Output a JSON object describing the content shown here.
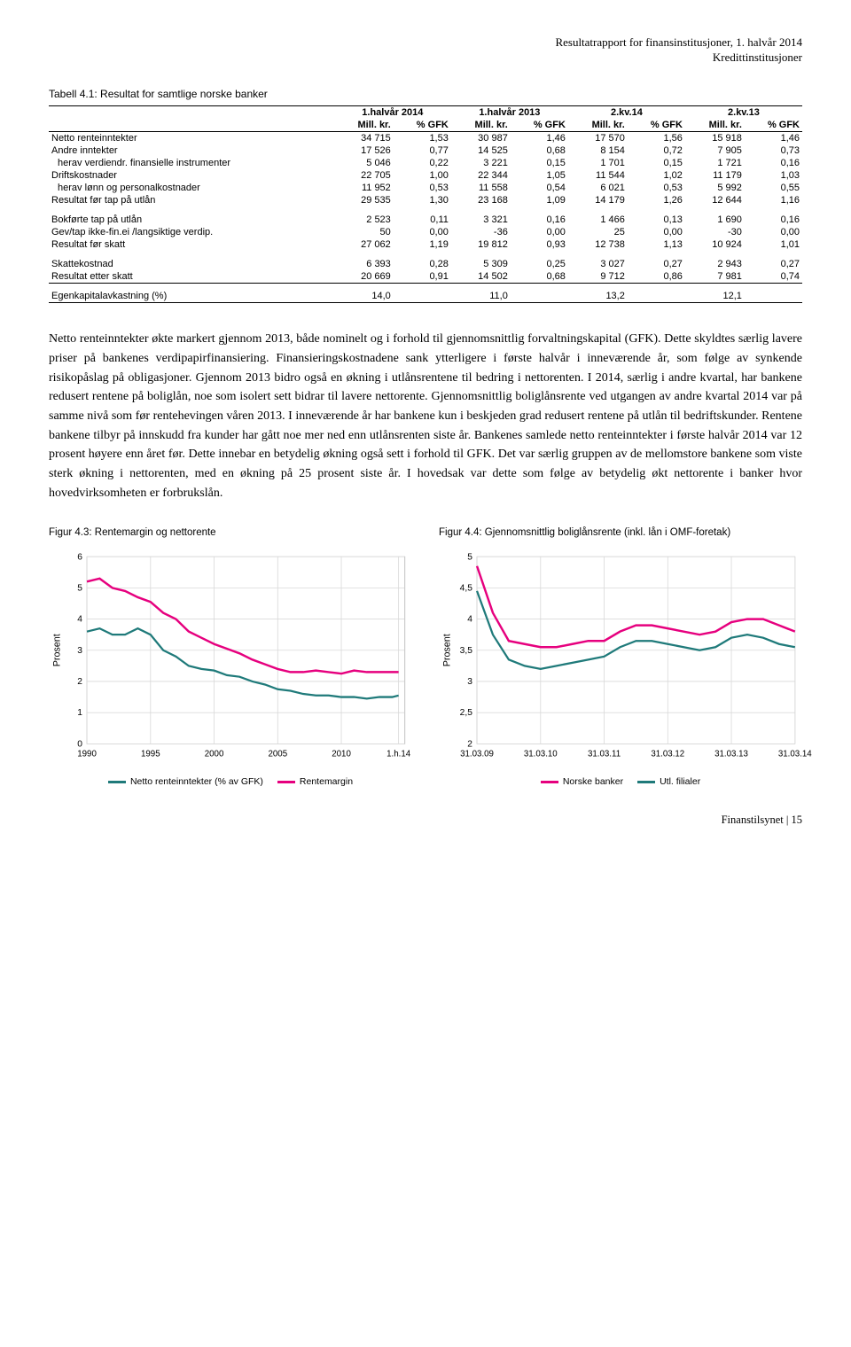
{
  "header": {
    "line1": "Resultatrapport for finansinstitusjoner, 1. halvår 2014",
    "line2": "Kredittinstitusjoner"
  },
  "table": {
    "caption": "Tabell 4.1: Resultat for samtlige norske banker",
    "col_groups": [
      "1.halvår 2014",
      "1.halvår 2013",
      "2.kv.14",
      "2.kv.13"
    ],
    "col_sub": [
      "Mill. kr.",
      "% GFK"
    ],
    "rows": [
      {
        "label": "Netto renteinntekter",
        "vals": [
          "34 715",
          "1,53",
          "30 987",
          "1,46",
          "17 570",
          "1,56",
          "15 918",
          "1,46"
        ]
      },
      {
        "label": "Andre inntekter",
        "vals": [
          "17 526",
          "0,77",
          "14 525",
          "0,68",
          "8 154",
          "0,72",
          "7 905",
          "0,73"
        ]
      },
      {
        "label": "herav verdiendr. finansielle instrumenter",
        "indent": true,
        "vals": [
          "5 046",
          "0,22",
          "3 221",
          "0,15",
          "1 701",
          "0,15",
          "1 721",
          "0,16"
        ]
      },
      {
        "label": "Driftskostnader",
        "vals": [
          "22 705",
          "1,00",
          "22 344",
          "1,05",
          "11 544",
          "1,02",
          "11 179",
          "1,03"
        ]
      },
      {
        "label": "herav lønn og personalkostnader",
        "indent": true,
        "vals": [
          "11 952",
          "0,53",
          "11 558",
          "0,54",
          "6 021",
          "0,53",
          "5 992",
          "0,55"
        ]
      },
      {
        "label": "Resultat før tap på utlån",
        "vals": [
          "29 535",
          "1,30",
          "23 168",
          "1,09",
          "14 179",
          "1,26",
          "12 644",
          "1,16"
        ]
      }
    ],
    "rows2": [
      {
        "label": "Bokførte tap på utlån",
        "vals": [
          "2 523",
          "0,11",
          "3 321",
          "0,16",
          "1 466",
          "0,13",
          "1 690",
          "0,16"
        ]
      },
      {
        "label": "Gev/tap ikke-fin.ei /langsiktige verdip.",
        "vals": [
          "50",
          "0,00",
          "-36",
          "0,00",
          "25",
          "0,00",
          "-30",
          "0,00"
        ]
      },
      {
        "label": "Resultat før skatt",
        "vals": [
          "27 062",
          "1,19",
          "19 812",
          "0,93",
          "12 738",
          "1,13",
          "10 924",
          "1,01"
        ]
      }
    ],
    "rows3": [
      {
        "label": "Skattekostnad",
        "vals": [
          "6 393",
          "0,28",
          "5 309",
          "0,25",
          "3 027",
          "0,27",
          "2 943",
          "0,27"
        ]
      },
      {
        "label": "Resultat etter skatt",
        "vals": [
          "20 669",
          "0,91",
          "14 502",
          "0,68",
          "9 712",
          "0,86",
          "7 981",
          "0,74"
        ]
      }
    ],
    "rows4": [
      {
        "label": "Egenkapitalavkastning (%)",
        "vals": [
          "14,0",
          "",
          "11,0",
          "",
          "13,2",
          "",
          "12,1",
          ""
        ]
      }
    ]
  },
  "body": "Netto renteinntekter økte markert gjennom 2013, både nominelt og i forhold til gjennomsnittlig forvaltningskapital (GFK). Dette skyldtes særlig lavere priser på bankenes verdipapirfinansiering. Finansieringskostnadene sank ytterligere i første halvår i inneværende år, som følge av synkende risikopåslag på obligasjoner. Gjennom 2013 bidro også en økning i utlånsrentene til bedring i nettorenten. I 2014, særlig i andre kvartal, har bankene redusert rentene på boliglån, noe som isolert sett bidrar til lavere nettorente. Gjennomsnittlig boliglånsrente ved utgangen av andre kvartal 2014 var på samme nivå som før rentehevingen våren 2013. I inneværende år har bankene kun i beskjeden grad redusert rentene på utlån til bedriftskunder. Rentene bankene tilbyr på innskudd fra kunder har gått noe mer ned enn utlånsrenten siste år. Bankenes samlede netto renteinntekter i første halvår 2014 var 12 prosent høyere enn året før. Dette innebar en betydelig økning også sett i forhold til GFK. Det var særlig gruppen av de mellomstore bankene som viste sterk økning i nettorenten, med en økning på 25 prosent siste år. I hovedsak var dette som følge av betydelig økt nettorente i banker hvor hovedvirksomheten er forbrukslån.",
  "charts": {
    "left": {
      "caption": "Figur 4.3: Rentemargin og nettorente",
      "ylabel": "Prosent",
      "ylim": [
        0,
        6
      ],
      "yticks": [
        0,
        1,
        2,
        3,
        4,
        5,
        6
      ],
      "xticks": [
        "1990",
        "1995",
        "2000",
        "2005",
        "2010",
        "1.h.14"
      ],
      "xtick_pos": [
        0,
        0.2,
        0.4,
        0.6,
        0.8,
        0.98
      ],
      "grid_color": "#d9d9d9",
      "bg_color": "#ffffff",
      "series": [
        {
          "name": "Netto renteinntekter (% av GFK)",
          "color": "#1f7a7a",
          "width": 2.2,
          "points": [
            [
              0,
              3.6
            ],
            [
              0.04,
              3.7
            ],
            [
              0.08,
              3.5
            ],
            [
              0.12,
              3.5
            ],
            [
              0.16,
              3.7
            ],
            [
              0.2,
              3.5
            ],
            [
              0.24,
              3.0
            ],
            [
              0.28,
              2.8
            ],
            [
              0.32,
              2.5
            ],
            [
              0.36,
              2.4
            ],
            [
              0.4,
              2.35
            ],
            [
              0.44,
              2.2
            ],
            [
              0.48,
              2.15
            ],
            [
              0.52,
              2.0
            ],
            [
              0.56,
              1.9
            ],
            [
              0.6,
              1.75
            ],
            [
              0.64,
              1.7
            ],
            [
              0.68,
              1.6
            ],
            [
              0.72,
              1.55
            ],
            [
              0.76,
              1.55
            ],
            [
              0.8,
              1.5
            ],
            [
              0.84,
              1.5
            ],
            [
              0.88,
              1.45
            ],
            [
              0.92,
              1.5
            ],
            [
              0.96,
              1.5
            ],
            [
              0.98,
              1.55
            ]
          ]
        },
        {
          "name": "Rentemargin",
          "color": "#e6007e",
          "width": 2.4,
          "points": [
            [
              0,
              5.2
            ],
            [
              0.04,
              5.3
            ],
            [
              0.08,
              5.0
            ],
            [
              0.12,
              4.9
            ],
            [
              0.16,
              4.7
            ],
            [
              0.2,
              4.55
            ],
            [
              0.24,
              4.2
            ],
            [
              0.28,
              4.0
            ],
            [
              0.32,
              3.6
            ],
            [
              0.36,
              3.4
            ],
            [
              0.4,
              3.2
            ],
            [
              0.44,
              3.05
            ],
            [
              0.48,
              2.9
            ],
            [
              0.52,
              2.7
            ],
            [
              0.56,
              2.55
            ],
            [
              0.6,
              2.4
            ],
            [
              0.64,
              2.3
            ],
            [
              0.68,
              2.3
            ],
            [
              0.72,
              2.35
            ],
            [
              0.76,
              2.3
            ],
            [
              0.8,
              2.25
            ],
            [
              0.84,
              2.35
            ],
            [
              0.88,
              2.3
            ],
            [
              0.92,
              2.3
            ],
            [
              0.96,
              2.3
            ],
            [
              0.98,
              2.3
            ]
          ]
        }
      ]
    },
    "right": {
      "caption": "Figur 4.4: Gjennomsnittlig boliglånsrente (inkl. lån i OMF-foretak)",
      "ylabel": "Prosent",
      "ylim": [
        2.0,
        5.0
      ],
      "yticks": [
        2.0,
        2.5,
        3.0,
        3.5,
        4.0,
        4.5,
        5.0
      ],
      "xticks": [
        "31.03.09",
        "31.03.10",
        "31.03.11",
        "31.03.12",
        "31.03.13",
        "31.03.14"
      ],
      "xtick_pos": [
        0,
        0.2,
        0.4,
        0.6,
        0.8,
        1.0
      ],
      "grid_color": "#d9d9d9",
      "bg_color": "#ffffff",
      "series": [
        {
          "name": "Norske banker",
          "color": "#e6007e",
          "width": 2.4,
          "points": [
            [
              0,
              4.85
            ],
            [
              0.05,
              4.1
            ],
            [
              0.1,
              3.65
            ],
            [
              0.15,
              3.6
            ],
            [
              0.2,
              3.55
            ],
            [
              0.25,
              3.55
            ],
            [
              0.3,
              3.6
            ],
            [
              0.35,
              3.65
            ],
            [
              0.4,
              3.65
            ],
            [
              0.45,
              3.8
            ],
            [
              0.5,
              3.9
            ],
            [
              0.55,
              3.9
            ],
            [
              0.6,
              3.85
            ],
            [
              0.65,
              3.8
            ],
            [
              0.7,
              3.75
            ],
            [
              0.75,
              3.8
            ],
            [
              0.8,
              3.95
            ],
            [
              0.85,
              4.0
            ],
            [
              0.9,
              4.0
            ],
            [
              0.95,
              3.9
            ],
            [
              1.0,
              3.8
            ]
          ]
        },
        {
          "name": "Utl. filialer",
          "color": "#1f7a7a",
          "width": 2.2,
          "points": [
            [
              0,
              4.45
            ],
            [
              0.05,
              3.75
            ],
            [
              0.1,
              3.35
            ],
            [
              0.15,
              3.25
            ],
            [
              0.2,
              3.2
            ],
            [
              0.25,
              3.25
            ],
            [
              0.3,
              3.3
            ],
            [
              0.35,
              3.35
            ],
            [
              0.4,
              3.4
            ],
            [
              0.45,
              3.55
            ],
            [
              0.5,
              3.65
            ],
            [
              0.55,
              3.65
            ],
            [
              0.6,
              3.6
            ],
            [
              0.65,
              3.55
            ],
            [
              0.7,
              3.5
            ],
            [
              0.75,
              3.55
            ],
            [
              0.8,
              3.7
            ],
            [
              0.85,
              3.75
            ],
            [
              0.9,
              3.7
            ],
            [
              0.95,
              3.6
            ],
            [
              1.0,
              3.55
            ]
          ]
        }
      ]
    }
  },
  "footer": "Finanstilsynet | 15"
}
